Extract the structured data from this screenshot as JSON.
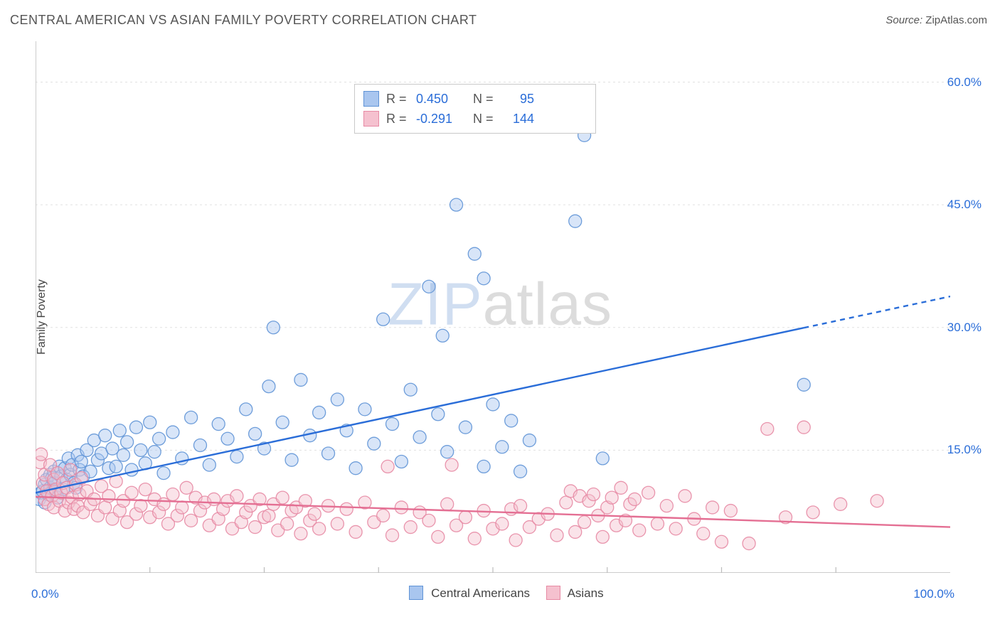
{
  "chart": {
    "type": "scatter",
    "title": "CENTRAL AMERICAN VS ASIAN FAMILY POVERTY CORRELATION CHART",
    "source_prefix": "Source: ",
    "source": "ZipAtlas.com",
    "ylabel": "Family Poverty",
    "watermark_a": "ZIP",
    "watermark_b": "atlas",
    "background_color": "#ffffff",
    "grid_color": "#e1e1e1",
    "axis_color": "#bcbcbc",
    "tick_label_color": "#2a6dd8",
    "title_color": "#555555",
    "title_fontsize": 18,
    "label_fontsize": 16,
    "tick_fontsize": 17,
    "legend_fontsize": 18,
    "xlim": [
      0,
      100
    ],
    "ylim": [
      0,
      65
    ],
    "yticks": [
      15,
      30,
      45,
      60
    ],
    "ytick_labels": [
      "15.0%",
      "30.0%",
      "45.0%",
      "60.0%"
    ],
    "xtick_positions": [
      12.5,
      25,
      37.5,
      50,
      62.5,
      75,
      87.5
    ],
    "xtick_left_label": "0.0%",
    "xtick_right_label": "100.0%",
    "marker_radius": 9,
    "marker_opacity": 0.45,
    "marker_stroke_opacity": 0.9,
    "line_width": 2.4,
    "series": [
      {
        "name": "Central Americans",
        "color_fill": "#a9c6ef",
        "color_stroke": "#5f93d6",
        "line_color": "#2a6dd8",
        "R": "0.450",
        "N": "95",
        "trend": {
          "x1": 0,
          "y1": 9.8,
          "x2": 100,
          "y2": 33.8,
          "solid_to_x": 84
        },
        "points": [
          [
            0.4,
            9.0
          ],
          [
            0.6,
            9.8
          ],
          [
            0.8,
            10.0
          ],
          [
            1.0,
            8.6
          ],
          [
            1.0,
            10.8
          ],
          [
            1.2,
            11.4
          ],
          [
            1.4,
            9.6
          ],
          [
            1.6,
            12.0
          ],
          [
            1.6,
            10.4
          ],
          [
            1.8,
            11.6
          ],
          [
            2.0,
            11.0
          ],
          [
            2.0,
            12.4
          ],
          [
            2.2,
            10.0
          ],
          [
            2.4,
            9.2
          ],
          [
            2.6,
            13.0
          ],
          [
            2.8,
            11.8
          ],
          [
            3.0,
            10.2
          ],
          [
            3.2,
            12.8
          ],
          [
            3.4,
            11.4
          ],
          [
            3.6,
            14.0
          ],
          [
            3.8,
            12.0
          ],
          [
            4.0,
            13.2
          ],
          [
            4.2,
            11.0
          ],
          [
            4.4,
            10.4
          ],
          [
            4.6,
            14.4
          ],
          [
            4.8,
            12.6
          ],
          [
            5.0,
            13.6
          ],
          [
            5.2,
            11.8
          ],
          [
            5.6,
            15.0
          ],
          [
            6.0,
            12.4
          ],
          [
            6.4,
            16.2
          ],
          [
            6.8,
            13.8
          ],
          [
            7.2,
            14.6
          ],
          [
            7.6,
            16.8
          ],
          [
            8.0,
            12.8
          ],
          [
            8.4,
            15.2
          ],
          [
            8.8,
            13.0
          ],
          [
            9.2,
            17.4
          ],
          [
            9.6,
            14.4
          ],
          [
            10.0,
            16.0
          ],
          [
            10.5,
            12.6
          ],
          [
            11.0,
            17.8
          ],
          [
            11.5,
            15.0
          ],
          [
            12.0,
            13.4
          ],
          [
            12.5,
            18.4
          ],
          [
            13.0,
            14.8
          ],
          [
            13.5,
            16.4
          ],
          [
            14.0,
            12.2
          ],
          [
            15.0,
            17.2
          ],
          [
            16.0,
            14.0
          ],
          [
            17.0,
            19.0
          ],
          [
            18.0,
            15.6
          ],
          [
            19.0,
            13.2
          ],
          [
            20.0,
            18.2
          ],
          [
            21.0,
            16.4
          ],
          [
            22.0,
            14.2
          ],
          [
            23.0,
            20.0
          ],
          [
            24.0,
            17.0
          ],
          [
            25.0,
            15.2
          ],
          [
            25.5,
            22.8
          ],
          [
            26.0,
            30.0
          ],
          [
            27.0,
            18.4
          ],
          [
            28.0,
            13.8
          ],
          [
            29.0,
            23.6
          ],
          [
            30.0,
            16.8
          ],
          [
            31.0,
            19.6
          ],
          [
            32.0,
            14.6
          ],
          [
            33.0,
            21.2
          ],
          [
            34.0,
            17.4
          ],
          [
            35.0,
            12.8
          ],
          [
            36.0,
            20.0
          ],
          [
            37.0,
            15.8
          ],
          [
            38.0,
            31.0
          ],
          [
            39.0,
            18.2
          ],
          [
            40.0,
            13.6
          ],
          [
            41.0,
            22.4
          ],
          [
            42.0,
            16.6
          ],
          [
            43.0,
            35.0
          ],
          [
            44.0,
            19.4
          ],
          [
            44.5,
            29.0
          ],
          [
            45.0,
            14.8
          ],
          [
            46.0,
            45.0
          ],
          [
            47.0,
            17.8
          ],
          [
            48.0,
            39.0
          ],
          [
            49.0,
            13.0
          ],
          [
            49.0,
            36.0
          ],
          [
            50.0,
            20.6
          ],
          [
            51.0,
            15.4
          ],
          [
            52.0,
            18.6
          ],
          [
            53.0,
            12.4
          ],
          [
            54.0,
            16.2
          ],
          [
            59.0,
            43.0
          ],
          [
            60.0,
            53.5
          ],
          [
            62.0,
            14.0
          ],
          [
            84.0,
            23.0
          ]
        ]
      },
      {
        "name": "Asians",
        "color_fill": "#f5c1cf",
        "color_stroke": "#e78aa4",
        "line_color": "#e46f93",
        "R": "-0.291",
        "N": "144",
        "trend": {
          "x1": 0,
          "y1": 9.3,
          "x2": 100,
          "y2": 5.6,
          "solid_to_x": 100
        },
        "points": [
          [
            0.5,
            13.5
          ],
          [
            0.6,
            14.5
          ],
          [
            0.8,
            11.0
          ],
          [
            1.0,
            9.0
          ],
          [
            1.0,
            12.0
          ],
          [
            1.2,
            10.0
          ],
          [
            1.4,
            8.4
          ],
          [
            1.6,
            13.2
          ],
          [
            1.8,
            9.4
          ],
          [
            2.0,
            11.4
          ],
          [
            2.0,
            8.0
          ],
          [
            2.2,
            10.2
          ],
          [
            2.4,
            12.2
          ],
          [
            2.6,
            8.8
          ],
          [
            2.8,
            9.8
          ],
          [
            3.0,
            11.0
          ],
          [
            3.2,
            7.6
          ],
          [
            3.4,
            10.4
          ],
          [
            3.6,
            8.6
          ],
          [
            3.8,
            12.6
          ],
          [
            4.0,
            9.2
          ],
          [
            4.2,
            7.8
          ],
          [
            4.4,
            10.8
          ],
          [
            4.6,
            8.2
          ],
          [
            4.8,
            9.6
          ],
          [
            5.0,
            11.6
          ],
          [
            5.2,
            7.4
          ],
          [
            5.6,
            10.0
          ],
          [
            6.0,
            8.4
          ],
          [
            6.4,
            9.0
          ],
          [
            6.8,
            7.0
          ],
          [
            7.2,
            10.6
          ],
          [
            7.6,
            8.0
          ],
          [
            8.0,
            9.4
          ],
          [
            8.4,
            6.6
          ],
          [
            8.8,
            11.2
          ],
          [
            9.2,
            7.6
          ],
          [
            9.6,
            8.8
          ],
          [
            10.0,
            6.2
          ],
          [
            10.5,
            9.8
          ],
          [
            11.0,
            7.2
          ],
          [
            11.5,
            8.2
          ],
          [
            12.0,
            10.2
          ],
          [
            12.5,
            6.8
          ],
          [
            13.0,
            9.0
          ],
          [
            13.5,
            7.4
          ],
          [
            14.0,
            8.4
          ],
          [
            14.5,
            6.0
          ],
          [
            15.0,
            9.6
          ],
          [
            15.5,
            7.0
          ],
          [
            16.0,
            8.0
          ],
          [
            16.5,
            10.4
          ],
          [
            17.0,
            6.4
          ],
          [
            17.5,
            9.2
          ],
          [
            18.0,
            7.6
          ],
          [
            18.5,
            8.6
          ],
          [
            19.0,
            5.8
          ],
          [
            19.5,
            9.0
          ],
          [
            20.0,
            6.6
          ],
          [
            20.5,
            7.8
          ],
          [
            21.0,
            8.8
          ],
          [
            21.5,
            5.4
          ],
          [
            22.0,
            9.4
          ],
          [
            22.5,
            6.2
          ],
          [
            23.0,
            7.4
          ],
          [
            23.5,
            8.2
          ],
          [
            24.0,
            5.6
          ],
          [
            24.5,
            9.0
          ],
          [
            25.0,
            6.8
          ],
          [
            25.5,
            7.0
          ],
          [
            26.0,
            8.4
          ],
          [
            26.5,
            5.2
          ],
          [
            27.0,
            9.2
          ],
          [
            27.5,
            6.0
          ],
          [
            28.0,
            7.6
          ],
          [
            28.5,
            8.0
          ],
          [
            29.0,
            4.8
          ],
          [
            29.5,
            8.8
          ],
          [
            30.0,
            6.4
          ],
          [
            30.5,
            7.2
          ],
          [
            31.0,
            5.4
          ],
          [
            32.0,
            8.2
          ],
          [
            33.0,
            6.0
          ],
          [
            34.0,
            7.8
          ],
          [
            35.0,
            5.0
          ],
          [
            36.0,
            8.6
          ],
          [
            37.0,
            6.2
          ],
          [
            38.0,
            7.0
          ],
          [
            38.5,
            13.0
          ],
          [
            39.0,
            4.6
          ],
          [
            40.0,
            8.0
          ],
          [
            41.0,
            5.6
          ],
          [
            42.0,
            7.4
          ],
          [
            43.0,
            6.4
          ],
          [
            44.0,
            4.4
          ],
          [
            45.0,
            8.4
          ],
          [
            45.5,
            13.2
          ],
          [
            46.0,
            5.8
          ],
          [
            47.0,
            6.8
          ],
          [
            48.0,
            4.2
          ],
          [
            49.0,
            7.6
          ],
          [
            50.0,
            5.4
          ],
          [
            51.0,
            6.0
          ],
          [
            52.0,
            7.8
          ],
          [
            52.5,
            4.0
          ],
          [
            53.0,
            8.2
          ],
          [
            54.0,
            5.6
          ],
          [
            55.0,
            6.6
          ],
          [
            56.0,
            7.2
          ],
          [
            57.0,
            4.6
          ],
          [
            58.0,
            8.6
          ],
          [
            58.5,
            10.0
          ],
          [
            59.0,
            5.0
          ],
          [
            59.5,
            9.4
          ],
          [
            60.0,
            6.2
          ],
          [
            60.5,
            8.8
          ],
          [
            61.0,
            9.6
          ],
          [
            61.5,
            7.0
          ],
          [
            62.0,
            4.4
          ],
          [
            62.5,
            8.0
          ],
          [
            63.0,
            9.2
          ],
          [
            63.5,
            5.8
          ],
          [
            64.0,
            10.4
          ],
          [
            64.5,
            6.4
          ],
          [
            65.0,
            8.4
          ],
          [
            65.5,
            9.0
          ],
          [
            66.0,
            5.2
          ],
          [
            67.0,
            9.8
          ],
          [
            68.0,
            6.0
          ],
          [
            69.0,
            8.2
          ],
          [
            70.0,
            5.4
          ],
          [
            71.0,
            9.4
          ],
          [
            72.0,
            6.6
          ],
          [
            73.0,
            4.8
          ],
          [
            74.0,
            8.0
          ],
          [
            75.0,
            3.8
          ],
          [
            76.0,
            7.6
          ],
          [
            78.0,
            3.6
          ],
          [
            80.0,
            17.6
          ],
          [
            82.0,
            6.8
          ],
          [
            84.0,
            17.8
          ],
          [
            85.0,
            7.4
          ],
          [
            88.0,
            8.4
          ],
          [
            92.0,
            8.8
          ]
        ]
      }
    ]
  }
}
